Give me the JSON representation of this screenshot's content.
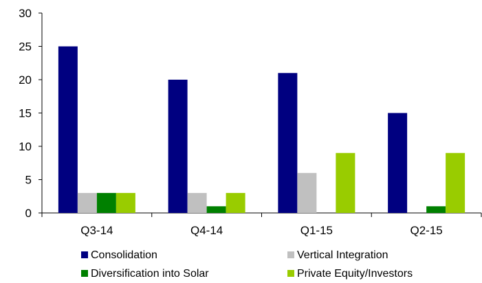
{
  "chart_data": {
    "type": "bar",
    "categories": [
      "Q3-14",
      "Q4-14",
      "Q1-15",
      "Q2-15"
    ],
    "series": [
      {
        "name": "Consolidation",
        "color": "#000080",
        "values": [
          25,
          20,
          21,
          15
        ]
      },
      {
        "name": "Vertical Integration",
        "color": "#C0C0C0",
        "values": [
          3,
          3,
          6,
          0
        ]
      },
      {
        "name": "Diversification into Solar",
        "color": "#008000",
        "values": [
          3,
          1,
          0,
          1
        ]
      },
      {
        "name": "Private Equity/Investors",
        "color": "#99CC00",
        "values": [
          3,
          3,
          9,
          9
        ]
      }
    ],
    "yticks": [
      0,
      5,
      10,
      15,
      20,
      25,
      30
    ],
    "ylim": [
      0,
      30
    ],
    "title": "",
    "xlabel": "",
    "ylabel": "",
    "grid": false,
    "legend_position": "bottom"
  }
}
